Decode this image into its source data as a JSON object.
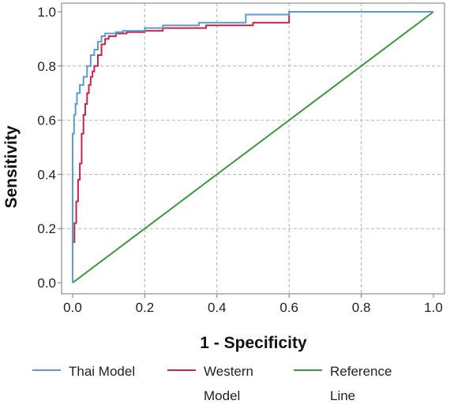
{
  "chart_data": {
    "type": "line",
    "title": "",
    "xlabel": "1 - Specificity",
    "ylabel": "Sensitivity",
    "xlim": [
      0,
      1
    ],
    "ylim": [
      0,
      1
    ],
    "x_ticks": [
      "0.0",
      "0.2",
      "0.4",
      "0.6",
      "0.8",
      "1.0"
    ],
    "y_ticks": [
      "0.0",
      "0.2",
      "0.4",
      "0.6",
      "0.8",
      "1.0"
    ],
    "grid": true,
    "legend_position": "bottom",
    "series": [
      {
        "name": "Thai Model",
        "color": "#5b9bd5",
        "x": [
          0,
          0,
          0.004,
          0.004,
          0.008,
          0.008,
          0.012,
          0.012,
          0.02,
          0.02,
          0.03,
          0.03,
          0.04,
          0.04,
          0.05,
          0.05,
          0.06,
          0.06,
          0.07,
          0.07,
          0.08,
          0.08,
          0.09,
          0.09,
          0.1,
          0.1,
          0.12,
          0.12,
          0.14,
          0.14,
          0.2,
          0.2,
          0.25,
          0.25,
          0.35,
          0.35,
          0.48,
          0.48,
          0.6,
          0.6,
          1.0
        ],
        "y": [
          0,
          0.55,
          0.55,
          0.62,
          0.62,
          0.66,
          0.66,
          0.7,
          0.7,
          0.73,
          0.73,
          0.76,
          0.76,
          0.8,
          0.8,
          0.84,
          0.84,
          0.86,
          0.86,
          0.89,
          0.89,
          0.91,
          0.91,
          0.92,
          0.92,
          0.92,
          0.92,
          0.925,
          0.925,
          0.93,
          0.93,
          0.94,
          0.94,
          0.95,
          0.95,
          0.96,
          0.96,
          0.99,
          0.99,
          1.0,
          1.0
        ]
      },
      {
        "name": "Western Model",
        "color": "#c8254a",
        "x": [
          0,
          0,
          0.005,
          0.005,
          0.01,
          0.01,
          0.015,
          0.015,
          0.02,
          0.02,
          0.025,
          0.025,
          0.03,
          0.03,
          0.035,
          0.035,
          0.04,
          0.04,
          0.045,
          0.045,
          0.05,
          0.05,
          0.055,
          0.055,
          0.06,
          0.06,
          0.07,
          0.07,
          0.08,
          0.08,
          0.09,
          0.09,
          0.1,
          0.1,
          0.12,
          0.12,
          0.15,
          0.15,
          0.2,
          0.2,
          0.25,
          0.25,
          0.37,
          0.37,
          0.5,
          0.5,
          0.6,
          0.6,
          1.0
        ],
        "y": [
          0,
          0.15,
          0.15,
          0.22,
          0.22,
          0.3,
          0.3,
          0.38,
          0.38,
          0.44,
          0.44,
          0.55,
          0.55,
          0.62,
          0.62,
          0.66,
          0.66,
          0.7,
          0.7,
          0.73,
          0.73,
          0.76,
          0.76,
          0.78,
          0.78,
          0.8,
          0.8,
          0.84,
          0.84,
          0.88,
          0.88,
          0.9,
          0.9,
          0.91,
          0.91,
          0.92,
          0.92,
          0.925,
          0.925,
          0.93,
          0.93,
          0.94,
          0.94,
          0.95,
          0.95,
          0.96,
          0.96,
          1.0,
          1.0
        ]
      },
      {
        "name": "Reference Line",
        "color": "#3a9a3a",
        "x": [
          0,
          1
        ],
        "y": [
          0,
          1
        ]
      }
    ]
  },
  "legend": {
    "items": [
      {
        "label": "Thai Model",
        "color": "#5b9bd5"
      },
      {
        "label": "Western Model",
        "color": "#c8254a"
      },
      {
        "label": "Reference Line",
        "color": "#3a9a3a"
      }
    ]
  }
}
